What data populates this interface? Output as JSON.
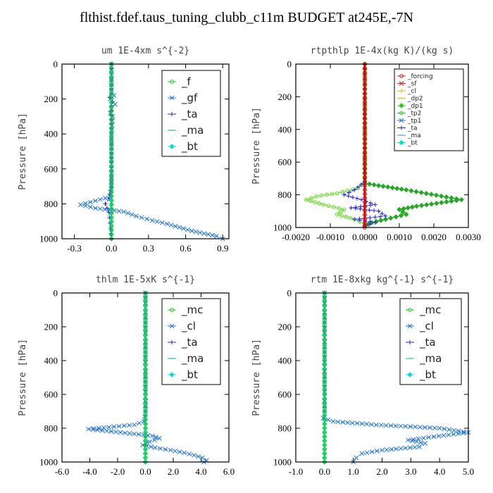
{
  "page_title": "flthist.fdef.taus_tuning_clubb_c11m  BUDGET at245E,-7N",
  "chart_data": [
    {
      "type": "line",
      "title": "um   1E-4xm s^{-2}",
      "ylabel": "Pressure [hPa]",
      "xlim": [
        -0.4,
        0.95
      ],
      "ylim": [
        1000,
        0
      ],
      "xticks": [
        "-0.3",
        "0.0",
        "0.3",
        "0.6",
        "0.9"
      ],
      "xtick_values": [
        -0.3,
        0.0,
        0.3,
        0.6,
        0.9
      ],
      "yticks": [
        0,
        200,
        400,
        600,
        800,
        1000
      ],
      "legend_style": "big",
      "legend": [
        {
          "name": "_f",
          "color": "#22cc22",
          "marker": "o"
        },
        {
          "name": "_gf",
          "color": "#2277dd",
          "marker": "x"
        },
        {
          "name": "_ta",
          "color": "#2222ee",
          "marker": "+"
        },
        {
          "name": "_ma",
          "color": "#22aacc",
          "marker": "-"
        },
        {
          "name": "_bt",
          "color": "#00dddd",
          "marker": "d"
        }
      ],
      "series": [
        {
          "name": "_bt",
          "color": "#00dddd",
          "dashed": false,
          "x": [
            0,
            0
          ],
          "y": [
            0,
            1000
          ]
        },
        {
          "name": "_gf",
          "color": "#2277dd",
          "dashed": true,
          "x": [
            0.0,
            0.0,
            0.02,
            -0.01,
            0.03,
            0.0,
            -0.01,
            0.01,
            0.0,
            0.0,
            0.0,
            -0.01,
            -0.25,
            -0.13,
            0.1,
            0.2,
            0.33,
            0.45,
            0.55,
            0.65,
            0.75,
            0.85,
            0.9
          ],
          "y": [
            0,
            150,
            180,
            200,
            230,
            260,
            280,
            300,
            400,
            600,
            700,
            760,
            805,
            825,
            845,
            870,
            895,
            915,
            935,
            955,
            970,
            985,
            1000
          ]
        },
        {
          "name": "_ta",
          "color": "#2222ee",
          "dashed": true,
          "x": [
            0.0,
            0.0,
            -0.015,
            0.01,
            0.0,
            0.0,
            0.0,
            -0.02,
            -0.05,
            -0.02,
            0.0
          ],
          "y": [
            0,
            170,
            190,
            215,
            240,
            400,
            700,
            770,
            800,
            850,
            1000
          ]
        },
        {
          "name": "_f",
          "color": "#22cc22",
          "dashed": false,
          "x": [
            0,
            0
          ],
          "y": [
            0,
            1000
          ]
        }
      ]
    },
    {
      "type": "line",
      "title": "rtpthlp   1E-4x(kg K)/(kg s)",
      "ylabel": "Pressure [hPa]",
      "xlim": [
        -0.002,
        0.003
      ],
      "ylim": [
        1000,
        0
      ],
      "xticks": [
        "-0.0020",
        "-0.0010",
        "0.0000",
        "0.0010",
        "0.0020",
        "0.0030"
      ],
      "xtick_values": [
        -0.002,
        -0.001,
        0.0,
        0.001,
        0.002,
        0.003
      ],
      "yticks": [
        0,
        200,
        400,
        600,
        800,
        1000
      ],
      "legend_style": "small",
      "legend": [
        {
          "name": "_forcing",
          "color": "#dd2222",
          "marker": "o"
        },
        {
          "name": "_sf",
          "color": "#dd2222",
          "marker": "x"
        },
        {
          "name": "_cl",
          "color": "#ddbb00",
          "marker": "+"
        },
        {
          "name": "_dp2",
          "color": "#ddbb00",
          "marker": "-"
        },
        {
          "name": "_dp1",
          "color": "#22cc22",
          "marker": "d"
        },
        {
          "name": "_tp2",
          "color": "#22cc22",
          "marker": "o"
        },
        {
          "name": "_tp1",
          "color": "#2277dd",
          "marker": "x"
        },
        {
          "name": "_ta",
          "color": "#2222ee",
          "marker": "+"
        },
        {
          "name": "_ma",
          "color": "#22aacc",
          "marker": "-"
        },
        {
          "name": "_bt",
          "color": "#00dddd",
          "marker": "d"
        }
      ],
      "series": [
        {
          "name": "_tp2",
          "color": "#66dd22",
          "dashed": false,
          "x": [
            0.0,
            0.0,
            -0.0002,
            -0.0008,
            -0.0014,
            -0.0017,
            -0.0012,
            -0.0006,
            -0.0008,
            -0.0003,
            0.0
          ],
          "y": [
            0,
            720,
            760,
            790,
            810,
            830,
            860,
            890,
            920,
            950,
            980
          ]
        },
        {
          "name": "_dp1",
          "color": "#22aa22",
          "dashed": false,
          "x": [
            0.0,
            0.0,
            0.0012,
            0.0028,
            0.0015,
            0.001,
            0.0012,
            0.0006,
            0.0002,
            0.0
          ],
          "y": [
            0,
            730,
            770,
            830,
            870,
            890,
            920,
            950,
            970,
            990
          ]
        },
        {
          "name": "_ta",
          "color": "#2222ee",
          "dashed": true,
          "x": [
            0.0,
            -0.0003,
            -0.0006,
            -0.0001,
            0.0003,
            -0.0004,
            0.0004,
            0.0006,
            -0.0003,
            0.0003,
            0.0
          ],
          "y": [
            720,
            770,
            800,
            830,
            860,
            880,
            900,
            930,
            950,
            970,
            990
          ]
        },
        {
          "name": "_forcing",
          "color": "#dd0000",
          "dashed": false,
          "thick": true,
          "x": [
            0,
            0
          ],
          "y": [
            0,
            1000
          ]
        }
      ]
    },
    {
      "type": "line",
      "title": "thlm   1E-5xK s^{-1}",
      "ylabel": "Pressure [hPa]",
      "xlim": [
        -6.0,
        6.0
      ],
      "ylim": [
        1000,
        0
      ],
      "xticks": [
        "-6.0",
        "-4.0",
        "-2.0",
        "0.0",
        "2.0",
        "4.0",
        "6.0"
      ],
      "xtick_values": [
        -6,
        -4,
        -2,
        0,
        2,
        4,
        6
      ],
      "yticks": [
        0,
        200,
        400,
        600,
        800,
        1000
      ],
      "legend_style": "big",
      "legend": [
        {
          "name": "_mc",
          "color": "#22cc22",
          "marker": "o"
        },
        {
          "name": "_cl",
          "color": "#2277dd",
          "marker": "x"
        },
        {
          "name": "_ta",
          "color": "#2222ee",
          "marker": "+"
        },
        {
          "name": "_ma",
          "color": "#22aacc",
          "marker": "-"
        },
        {
          "name": "_bt",
          "color": "#00dddd",
          "marker": "d"
        }
      ],
      "series": [
        {
          "name": "_bt",
          "color": "#00dddd",
          "dashed": false,
          "x": [
            0,
            0
          ],
          "y": [
            0,
            1000
          ]
        },
        {
          "name": "_cl",
          "color": "#2277dd",
          "dashed": true,
          "x": [
            0.0,
            0.0,
            -0.1,
            -0.8,
            -4.1,
            -1.8,
            0.5,
            1.0,
            0.3,
            -0.2,
            0.7,
            1.8,
            2.8,
            3.5,
            4.1,
            4.4,
            4.2
          ],
          "y": [
            0,
            700,
            760,
            780,
            805,
            825,
            845,
            860,
            880,
            900,
            915,
            930,
            945,
            960,
            975,
            990,
            1000
          ]
        },
        {
          "name": "_mc",
          "color": "#22cc22",
          "dashed": false,
          "x": [
            0,
            0
          ],
          "y": [
            0,
            1000
          ]
        }
      ]
    },
    {
      "type": "line",
      "title": "rtm   1E-8xkg kg^{-1} s^{-1}",
      "ylabel": "Pressure [hPa]",
      "xlim": [
        -1.0,
        5.0
      ],
      "ylim": [
        1000,
        0
      ],
      "xticks": [
        "-1.0",
        "0.0",
        "1.0",
        "2.0",
        "3.0",
        "4.0",
        "5.0"
      ],
      "xtick_values": [
        -1,
        0,
        1,
        2,
        3,
        4,
        5
      ],
      "yticks": [
        0,
        200,
        400,
        600,
        800,
        1000
      ],
      "legend_style": "big",
      "legend": [
        {
          "name": "_mc",
          "color": "#22cc22",
          "marker": "o"
        },
        {
          "name": "_cl",
          "color": "#2277dd",
          "marker": "x"
        },
        {
          "name": "_ta",
          "color": "#2222ee",
          "marker": "+"
        },
        {
          "name": "_ma",
          "color": "#22aacc",
          "marker": "-"
        },
        {
          "name": "_bt",
          "color": "#00dddd",
          "marker": "d"
        }
      ],
      "series": [
        {
          "name": "_bt",
          "color": "#00dddd",
          "dashed": false,
          "x": [
            0,
            0
          ],
          "y": [
            0,
            1000
          ]
        },
        {
          "name": "_cl",
          "color": "#2277dd",
          "dashed": true,
          "x": [
            0.0,
            0.0,
            -0.05,
            0.3,
            1.8,
            4.0,
            5.0,
            3.8,
            2.9,
            3.5,
            3.3,
            2.0,
            1.3,
            1.1,
            1.0
          ],
          "y": [
            0,
            700,
            740,
            760,
            780,
            800,
            825,
            850,
            870,
            890,
            910,
            930,
            950,
            975,
            1000
          ]
        },
        {
          "name": "_mc",
          "color": "#22cc22",
          "dashed": false,
          "x": [
            0,
            0
          ],
          "y": [
            0,
            1000
          ]
        }
      ]
    }
  ]
}
